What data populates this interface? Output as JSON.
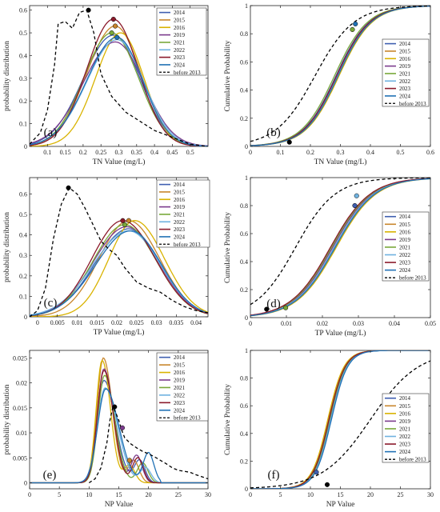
{
  "chart_data": [
    {
      "panel": "(a)",
      "type": "line",
      "xlabel": "TN Value (mg/L)",
      "ylabel": "probability distribution",
      "xlim": [
        0.05,
        0.55
      ],
      "ylim": [
        0,
        0.62
      ],
      "xticks": [
        "0.1",
        "0.15",
        "0.2",
        "0.25",
        "0.3",
        "0.35",
        "0.4",
        "0.45",
        "0.5"
      ],
      "xtick_values": [
        0.1,
        0.15,
        0.2,
        0.25,
        0.3,
        0.35,
        0.4,
        0.45,
        0.5
      ],
      "yticks": [
        "0",
        "0.1",
        "0.2",
        "0.3",
        "0.4",
        "0.5",
        "0.6"
      ],
      "ytick_values": [
        0,
        0.1,
        0.2,
        0.3,
        0.4,
        0.5,
        0.6
      ],
      "legend_position": "top-right",
      "series": [
        {
          "name": "2014",
          "color": "#3f5fb0",
          "peak_x": 0.285,
          "peak_y": 0.49,
          "sigma_left": 0.085,
          "sigma_right": 0.075
        },
        {
          "name": "2015",
          "color": "#c8862c",
          "peak_x": 0.29,
          "peak_y": 0.53,
          "sigma_left": 0.08,
          "sigma_right": 0.072
        },
        {
          "name": "2016",
          "color": "#d9b300",
          "peak_x": 0.305,
          "peak_y": 0.5,
          "sigma_left": 0.07,
          "sigma_right": 0.065
        },
        {
          "name": "2019",
          "color": "#7c3b8d",
          "peak_x": 0.29,
          "peak_y": 0.46,
          "sigma_left": 0.09,
          "sigma_right": 0.08
        },
        {
          "name": "2021",
          "color": "#79a83a",
          "peak_x": 0.28,
          "peak_y": 0.5,
          "sigma_left": 0.078,
          "sigma_right": 0.075
        },
        {
          "name": "2022",
          "color": "#6fb2e0",
          "peak_x": 0.295,
          "peak_y": 0.47,
          "sigma_left": 0.085,
          "sigma_right": 0.075
        },
        {
          "name": "2023",
          "color": "#8b1a2b",
          "peak_x": 0.285,
          "peak_y": 0.56,
          "sigma_left": 0.075,
          "sigma_right": 0.07
        },
        {
          "name": "2024",
          "color": "#2171b5",
          "peak_x": 0.295,
          "peak_y": 0.48,
          "sigma_left": 0.085,
          "sigma_right": 0.072
        }
      ],
      "before": {
        "name": "before 2013",
        "x": [
          0.05,
          0.08,
          0.1,
          0.12,
          0.13,
          0.15,
          0.17,
          0.19,
          0.21,
          0.23,
          0.25,
          0.28,
          0.32,
          0.36,
          0.4,
          0.45,
          0.5,
          0.55
        ],
        "y": [
          0.01,
          0.06,
          0.16,
          0.36,
          0.54,
          0.55,
          0.52,
          0.59,
          0.6,
          0.5,
          0.32,
          0.22,
          0.15,
          0.11,
          0.07,
          0.04,
          0.01,
          0.0
        ]
      },
      "markers": [
        {
          "x": 0.215,
          "y": 0.6,
          "fill": "#000"
        },
        {
          "x": 0.285,
          "y": 0.56,
          "fill": "#8b1a2b"
        },
        {
          "x": 0.29,
          "y": 0.53,
          "fill": "#c8862c"
        },
        {
          "x": 0.28,
          "y": 0.5,
          "fill": "#79a83a"
        },
        {
          "x": 0.295,
          "y": 0.48,
          "fill": "#2171b5"
        }
      ]
    },
    {
      "panel": "(b)",
      "type": "line",
      "xlabel": "TN Value (mg/L)",
      "ylabel": "Cumulative Probability",
      "xlim": [
        0,
        0.6
      ],
      "ylim": [
        0,
        1
      ],
      "xticks": [
        "0",
        "0.1",
        "0.2",
        "0.3",
        "0.4",
        "0.5",
        "0.6"
      ],
      "xtick_values": [
        0,
        0.1,
        0.2,
        0.3,
        0.4,
        0.5,
        0.6
      ],
      "yticks": [
        "0",
        "0.2",
        "0.4",
        "0.6",
        "0.8",
        "1"
      ],
      "ytick_values": [
        0,
        0.2,
        0.4,
        0.6,
        0.8,
        1
      ],
      "legend_position": "lower-right",
      "series_centers": [
        0.285,
        0.29,
        0.295,
        0.29,
        0.28,
        0.29,
        0.287,
        0.292
      ],
      "series_scale": 0.055,
      "before_center": 0.215,
      "before_scale": 0.065,
      "markers": [
        {
          "x": 0.13,
          "y": 0.03,
          "fill": "#000"
        },
        {
          "x": 0.35,
          "y": 0.87,
          "fill": "#2171b5"
        },
        {
          "x": 0.34,
          "y": 0.83,
          "fill": "#79a83a"
        }
      ]
    },
    {
      "panel": "(c)",
      "type": "line",
      "xlabel": "TP Value (mg/L)",
      "ylabel": "probability distribution",
      "xlim": [
        -0.002,
        0.043
      ],
      "ylim": [
        0,
        0.68
      ],
      "xticks": [
        "0",
        "0.005",
        "0.01",
        "0.015",
        "0.02",
        "0.025",
        "0.03",
        "0.035",
        "0.04"
      ],
      "xtick_values": [
        0,
        0.005,
        0.01,
        0.015,
        0.02,
        0.025,
        0.03,
        0.035,
        0.04
      ],
      "yticks": [
        "0",
        "0.1",
        "0.2",
        "0.3",
        "0.4",
        "0.5",
        "0.6"
      ],
      "ytick_values": [
        0,
        0.1,
        0.2,
        0.3,
        0.4,
        0.5,
        0.6
      ],
      "legend_position": "top-right",
      "series": [
        {
          "name": "2014",
          "color": "#3f5fb0",
          "peak_x": 0.023,
          "peak_y": 0.43,
          "sigma_left": 0.0085,
          "sigma_right": 0.008
        },
        {
          "name": "2015",
          "color": "#c8862c",
          "peak_x": 0.023,
          "peak_y": 0.47,
          "sigma_left": 0.0075,
          "sigma_right": 0.0078
        },
        {
          "name": "2016",
          "color": "#d9b300",
          "peak_x": 0.0245,
          "peak_y": 0.47,
          "sigma_left": 0.0065,
          "sigma_right": 0.0075
        },
        {
          "name": "2019",
          "color": "#7c3b8d",
          "peak_x": 0.0225,
          "peak_y": 0.44,
          "sigma_left": 0.0085,
          "sigma_right": 0.008
        },
        {
          "name": "2021",
          "color": "#79a83a",
          "peak_x": 0.022,
          "peak_y": 0.45,
          "sigma_left": 0.008,
          "sigma_right": 0.008
        },
        {
          "name": "2022",
          "color": "#6fb2e0",
          "peak_x": 0.023,
          "peak_y": 0.42,
          "sigma_left": 0.009,
          "sigma_right": 0.008
        },
        {
          "name": "2023",
          "color": "#8b1a2b",
          "peak_x": 0.0215,
          "peak_y": 0.47,
          "sigma_left": 0.0078,
          "sigma_right": 0.0082
        },
        {
          "name": "2024",
          "color": "#2171b5",
          "peak_x": 0.0235,
          "peak_y": 0.42,
          "sigma_left": 0.0088,
          "sigma_right": 0.0078
        }
      ],
      "before": {
        "name": "before 2013",
        "x": [
          -0.002,
          0.0,
          0.002,
          0.004,
          0.006,
          0.008,
          0.01,
          0.012,
          0.014,
          0.016,
          0.018,
          0.02,
          0.022,
          0.025,
          0.028,
          0.031,
          0.034,
          0.037,
          0.04,
          0.043
        ],
        "y": [
          0.0,
          0.03,
          0.14,
          0.38,
          0.55,
          0.63,
          0.6,
          0.53,
          0.45,
          0.37,
          0.33,
          0.3,
          0.24,
          0.17,
          0.14,
          0.12,
          0.08,
          0.05,
          0.03,
          0.02
        ]
      },
      "markers": [
        {
          "x": 0.0078,
          "y": 0.63,
          "fill": "#000"
        },
        {
          "x": 0.0215,
          "y": 0.47,
          "fill": "#8b1a2b"
        },
        {
          "x": 0.023,
          "y": 0.47,
          "fill": "#c8862c"
        },
        {
          "x": 0.022,
          "y": 0.45,
          "fill": "#79a83a"
        }
      ]
    },
    {
      "panel": "(d)",
      "type": "line",
      "xlabel": "TP Value (mg/L)",
      "ylabel": "Cumulative Probability",
      "xlim": [
        0,
        0.05
      ],
      "ylim": [
        0,
        1
      ],
      "xticks": [
        "0",
        "0.01",
        "0.02",
        "0.03",
        "0.04",
        "0.05"
      ],
      "xtick_values": [
        0,
        0.01,
        0.02,
        0.03,
        0.04,
        0.05
      ],
      "yticks": [
        "0",
        "0.2",
        "0.4",
        "0.6",
        "0.8",
        "1"
      ],
      "ytick_values": [
        0,
        0.2,
        0.4,
        0.6,
        0.8,
        1
      ],
      "legend_position": "lower-right",
      "series_centers": [
        0.0232,
        0.0232,
        0.0238,
        0.0228,
        0.0225,
        0.0232,
        0.0222,
        0.0235
      ],
      "series_scale": 0.0055,
      "before_center": 0.0125,
      "before_scale": 0.0055,
      "markers": [
        {
          "x": 0.0045,
          "y": 0.06,
          "fill": "#000"
        },
        {
          "x": 0.0098,
          "y": 0.07,
          "fill": "#79a83a"
        },
        {
          "x": 0.0295,
          "y": 0.87,
          "fill": "#6fb2e0"
        },
        {
          "x": 0.029,
          "y": 0.8,
          "fill": "#3f5fb0"
        }
      ]
    },
    {
      "panel": "(e)",
      "type": "line",
      "xlabel": "NP Value",
      "ylabel": "probability distribution",
      "xlim": [
        0,
        30
      ],
      "ylim": [
        -0.0012,
        0.0265
      ],
      "xticks": [
        "0",
        "5",
        "10",
        "15",
        "20",
        "25",
        "30"
      ],
      "xtick_values": [
        0,
        5,
        10,
        15,
        20,
        25,
        30
      ],
      "yticks": [
        "0",
        "0.005",
        "0.01",
        "0.015",
        "0.02",
        "0.025"
      ],
      "ytick_values": [
        0,
        0.005,
        0.01,
        0.015,
        0.02,
        0.025
      ],
      "legend_position": "top-right",
      "series": [
        {
          "name": "2014",
          "color": "#3f5fb0",
          "peak_x": 12.5,
          "peak_y": 0.0205,
          "sigma_left": 1.2,
          "sigma_right": 1.9,
          "bump_x": 18.5,
          "bump_y": 0.0045
        },
        {
          "name": "2015",
          "color": "#c8862c",
          "peak_x": 12.4,
          "peak_y": 0.025,
          "sigma_left": 1.05,
          "sigma_right": 1.5,
          "bump_x": 17.5,
          "bump_y": 0.0045
        },
        {
          "name": "2016",
          "color": "#d9b300",
          "peak_x": 12.2,
          "peak_y": 0.0245,
          "sigma_left": 1.0,
          "sigma_right": 1.4,
          "bump_x": 16.8,
          "bump_y": 0.0035
        },
        {
          "name": "2019",
          "color": "#7c3b8d",
          "peak_x": 12.5,
          "peak_y": 0.0228,
          "sigma_left": 1.1,
          "sigma_right": 1.6,
          "bump_x": 18.0,
          "bump_y": 0.0055
        },
        {
          "name": "2021",
          "color": "#79a83a",
          "peak_x": 12.6,
          "peak_y": 0.0215,
          "sigma_left": 1.1,
          "sigma_right": 1.7,
          "bump_x": 19.0,
          "bump_y": 0.004
        },
        {
          "name": "2022",
          "color": "#6fb2e0",
          "peak_x": 12.7,
          "peak_y": 0.019,
          "sigma_left": 1.3,
          "sigma_right": 2.1,
          "bump_x": 19.5,
          "bump_y": 0.003
        },
        {
          "name": "2023",
          "color": "#8b1a2b",
          "peak_x": 12.5,
          "peak_y": 0.0225,
          "sigma_left": 1.1,
          "sigma_right": 1.6,
          "bump_x": 18.2,
          "bump_y": 0.005
        },
        {
          "name": "2024",
          "color": "#2171b5",
          "peak_x": 12.8,
          "peak_y": 0.0188,
          "sigma_left": 1.35,
          "sigma_right": 2.2,
          "bump_x": 20.0,
          "bump_y": 0.006
        }
      ],
      "before": {
        "name": "before 2013",
        "x": [
          10,
          11,
          12,
          13,
          13.5,
          14,
          14.5,
          15,
          15.5,
          16,
          17,
          18,
          19,
          20,
          21,
          22,
          23,
          24,
          25,
          26,
          27,
          28,
          29,
          30
        ],
        "y": [
          0,
          0.0008,
          0.003,
          0.008,
          0.0125,
          0.0152,
          0.014,
          0.0125,
          0.0105,
          0.009,
          0.0078,
          0.007,
          0.0063,
          0.0058,
          0.0052,
          0.0045,
          0.0038,
          0.003,
          0.0025,
          0.0023,
          0.0021,
          0.0016,
          0.0012,
          0.0008
        ]
      },
      "markers": [
        {
          "x": 14.3,
          "y": 0.0152,
          "fill": "#000"
        },
        {
          "x": 15.6,
          "y": 0.011,
          "fill": "#7c3b8d"
        },
        {
          "x": 16.8,
          "y": 0.0045,
          "fill": "#c8862c"
        }
      ]
    },
    {
      "panel": "(f)",
      "type": "line",
      "xlabel": "NP Value",
      "ylabel": "Cumulative Probability",
      "xlim": [
        0,
        30
      ],
      "ylim": [
        0,
        1
      ],
      "xticks": [
        "0",
        "5",
        "10",
        "15",
        "20",
        "25",
        "30"
      ],
      "xtick_values": [
        0,
        5,
        10,
        15,
        20,
        25,
        30
      ],
      "yticks": [
        "0",
        "0.2",
        "0.4",
        "0.6",
        "0.8",
        "1"
      ],
      "ytick_values": [
        0,
        0.2,
        0.4,
        0.6,
        0.8,
        1
      ],
      "legend_position": "center-right",
      "series_centers": [
        13.3,
        13.0,
        12.9,
        13.1,
        13.2,
        13.4,
        13.1,
        13.5
      ],
      "series_scale": 1.35,
      "before_center": 20.0,
      "before_scale": 4.0,
      "markers": [
        {
          "x": 12.8,
          "y": 0.03,
          "fill": "#000"
        },
        {
          "x": 11.0,
          "y": 0.12,
          "fill": "#3f5fb0"
        }
      ]
    }
  ]
}
